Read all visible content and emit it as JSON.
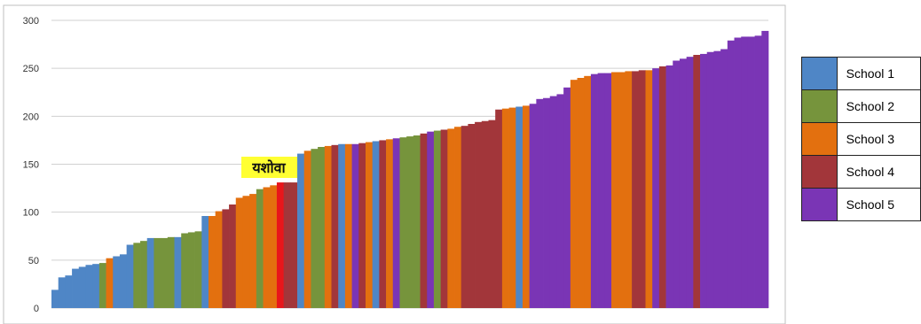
{
  "chart_data": {
    "type": "bar",
    "ylim": [
      0,
      300
    ],
    "yticks": [
      0,
      50,
      100,
      150,
      200,
      250,
      300
    ],
    "grid": true,
    "legend_position": "right",
    "annotation": {
      "text": "यशोवा",
      "bar_index": 46,
      "color": "#ffff33"
    },
    "highlight_color": "#e8161b",
    "series": [
      {
        "name": "School 1",
        "color": "#4f86c6"
      },
      {
        "name": "School 2",
        "color": "#76943c"
      },
      {
        "name": "School 3",
        "color": "#e3700f"
      },
      {
        "name": "School 4",
        "color": "#a2363a"
      },
      {
        "name": "School 5",
        "color": "#7a35b5"
      }
    ],
    "bars": [
      {
        "v": 19,
        "s": 0
      },
      {
        "v": 32,
        "s": 0
      },
      {
        "v": 34,
        "s": 0
      },
      {
        "v": 41,
        "s": 0
      },
      {
        "v": 43,
        "s": 0
      },
      {
        "v": 45,
        "s": 0
      },
      {
        "v": 46,
        "s": 0
      },
      {
        "v": 47,
        "s": 1
      },
      {
        "v": 52,
        "s": 2
      },
      {
        "v": 54,
        "s": 0
      },
      {
        "v": 56,
        "s": 0
      },
      {
        "v": 66,
        "s": 0
      },
      {
        "v": 68,
        "s": 1
      },
      {
        "v": 70,
        "s": 1
      },
      {
        "v": 73,
        "s": 0
      },
      {
        "v": 73,
        "s": 1
      },
      {
        "v": 73,
        "s": 1
      },
      {
        "v": 74,
        "s": 1
      },
      {
        "v": 74,
        "s": 0
      },
      {
        "v": 78,
        "s": 1
      },
      {
        "v": 79,
        "s": 1
      },
      {
        "v": 80,
        "s": 1
      },
      {
        "v": 96,
        "s": 0
      },
      {
        "v": 96,
        "s": 2
      },
      {
        "v": 101,
        "s": 2
      },
      {
        "v": 103,
        "s": 3
      },
      {
        "v": 108,
        "s": 3
      },
      {
        "v": 115,
        "s": 2
      },
      {
        "v": 117,
        "s": 2
      },
      {
        "v": 119,
        "s": 2
      },
      {
        "v": 124,
        "s": 1
      },
      {
        "v": 126,
        "s": 2
      },
      {
        "v": 128,
        "s": 2
      },
      {
        "v": 131,
        "s": 3,
        "h": true
      },
      {
        "v": 131,
        "s": 3
      },
      {
        "v": 131,
        "s": 3
      },
      {
        "v": 161,
        "s": 0
      },
      {
        "v": 164,
        "s": 2
      },
      {
        "v": 166,
        "s": 1
      },
      {
        "v": 168,
        "s": 1
      },
      {
        "v": 169,
        "s": 2
      },
      {
        "v": 170,
        "s": 3
      },
      {
        "v": 171,
        "s": 0
      },
      {
        "v": 171,
        "s": 2
      },
      {
        "v": 171,
        "s": 4
      },
      {
        "v": 172,
        "s": 3
      },
      {
        "v": 173,
        "s": 2
      },
      {
        "v": 174,
        "s": 0
      },
      {
        "v": 175,
        "s": 3
      },
      {
        "v": 176,
        "s": 2
      },
      {
        "v": 177,
        "s": 4
      },
      {
        "v": 178,
        "s": 1
      },
      {
        "v": 179,
        "s": 1
      },
      {
        "v": 180,
        "s": 1
      },
      {
        "v": 182,
        "s": 3
      },
      {
        "v": 184,
        "s": 4
      },
      {
        "v": 185,
        "s": 1
      },
      {
        "v": 186,
        "s": 3
      },
      {
        "v": 187,
        "s": 2
      },
      {
        "v": 189,
        "s": 2
      },
      {
        "v": 190,
        "s": 3
      },
      {
        "v": 192,
        "s": 3
      },
      {
        "v": 194,
        "s": 3
      },
      {
        "v": 195,
        "s": 3
      },
      {
        "v": 196,
        "s": 3
      },
      {
        "v": 207,
        "s": 3
      },
      {
        "v": 208,
        "s": 2
      },
      {
        "v": 209,
        "s": 2
      },
      {
        "v": 210,
        "s": 0
      },
      {
        "v": 211,
        "s": 2
      },
      {
        "v": 213,
        "s": 4
      },
      {
        "v": 218,
        "s": 4
      },
      {
        "v": 219,
        "s": 4
      },
      {
        "v": 221,
        "s": 4
      },
      {
        "v": 223,
        "s": 4
      },
      {
        "v": 230,
        "s": 4
      },
      {
        "v": 238,
        "s": 2
      },
      {
        "v": 240,
        "s": 2
      },
      {
        "v": 242,
        "s": 2
      },
      {
        "v": 244,
        "s": 4
      },
      {
        "v": 245,
        "s": 4
      },
      {
        "v": 245,
        "s": 4
      },
      {
        "v": 246,
        "s": 2
      },
      {
        "v": 246,
        "s": 2
      },
      {
        "v": 247,
        "s": 2
      },
      {
        "v": 247,
        "s": 3
      },
      {
        "v": 248,
        "s": 3
      },
      {
        "v": 248,
        "s": 2
      },
      {
        "v": 250,
        "s": 4
      },
      {
        "v": 252,
        "s": 3
      },
      {
        "v": 253,
        "s": 4
      },
      {
        "v": 258,
        "s": 4
      },
      {
        "v": 260,
        "s": 4
      },
      {
        "v": 262,
        "s": 4
      },
      {
        "v": 264,
        "s": 3
      },
      {
        "v": 265,
        "s": 4
      },
      {
        "v": 267,
        "s": 4
      },
      {
        "v": 268,
        "s": 4
      },
      {
        "v": 270,
        "s": 4
      },
      {
        "v": 279,
        "s": 4
      },
      {
        "v": 282,
        "s": 4
      },
      {
        "v": 283,
        "s": 4
      },
      {
        "v": 283,
        "s": 4
      },
      {
        "v": 284,
        "s": 4
      },
      {
        "v": 289,
        "s": 4
      }
    ]
  }
}
